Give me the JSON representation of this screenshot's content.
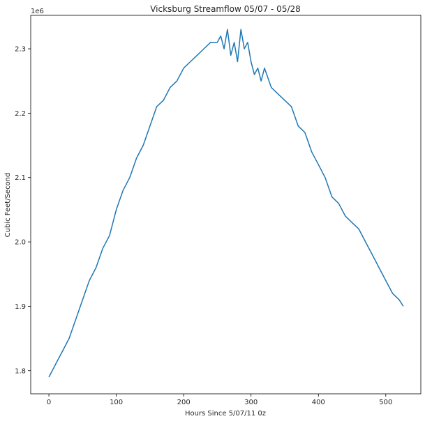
{
  "chart_data": {
    "type": "line",
    "title": "Vicksburg Streamflow 05/07 - 05/28",
    "xlabel": "Hours Since 5/07/11 0z",
    "ylabel": "Cubic Feet/Second",
    "y_offset_label": "1e6",
    "xlim": [
      -27,
      552
    ],
    "ylim": [
      1.764,
      2.352
    ],
    "xticks": [
      0,
      100,
      200,
      300,
      400,
      500
    ],
    "xtick_labels": [
      "0",
      "100",
      "200",
      "300",
      "400",
      "500"
    ],
    "yticks": [
      1.8,
      1.9,
      2.0,
      2.1,
      2.2,
      2.3
    ],
    "ytick_labels": [
      "1.8",
      "1.9",
      "2.0",
      "2.1",
      "2.2",
      "2.3"
    ],
    "grid": false,
    "series": [
      {
        "color": "#1f77b4",
        "x": [
          0,
          10,
          20,
          30,
          40,
          50,
          60,
          70,
          80,
          90,
          100,
          110,
          120,
          130,
          140,
          150,
          160,
          170,
          180,
          190,
          200,
          210,
          220,
          230,
          240,
          250,
          255,
          260,
          265,
          270,
          275,
          280,
          285,
          290,
          295,
          300,
          305,
          310,
          315,
          320,
          330,
          340,
          350,
          360,
          370,
          380,
          390,
          400,
          410,
          420,
          430,
          440,
          450,
          460,
          470,
          480,
          490,
          500,
          510,
          520,
          526
        ],
        "y": [
          1.79,
          1.81,
          1.83,
          1.85,
          1.88,
          1.91,
          1.94,
          1.96,
          1.99,
          2.01,
          2.05,
          2.08,
          2.1,
          2.13,
          2.15,
          2.18,
          2.21,
          2.22,
          2.24,
          2.25,
          2.27,
          2.28,
          2.29,
          2.3,
          2.31,
          2.31,
          2.32,
          2.3,
          2.33,
          2.29,
          2.31,
          2.28,
          2.33,
          2.3,
          2.31,
          2.28,
          2.26,
          2.27,
          2.25,
          2.27,
          2.24,
          2.23,
          2.22,
          2.21,
          2.18,
          2.17,
          2.14,
          2.12,
          2.1,
          2.07,
          2.06,
          2.04,
          2.03,
          2.02,
          2.0,
          1.98,
          1.96,
          1.94,
          1.92,
          1.91,
          1.9
        ]
      }
    ]
  }
}
